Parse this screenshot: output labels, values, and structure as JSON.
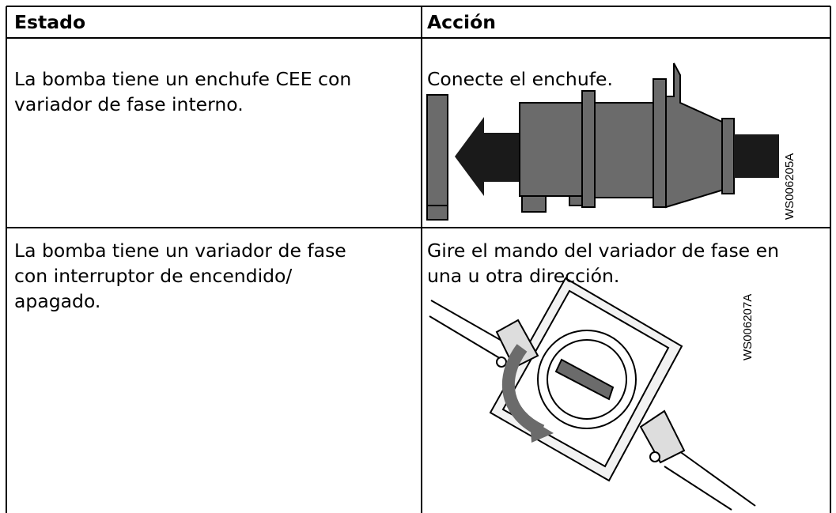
{
  "table": {
    "header": [
      "Estado",
      "Acción"
    ],
    "rows": [
      {
        "estado": [
          "La bomba tiene un enchufe CEE con",
          "variador de fase interno."
        ],
        "accion": [
          "Conecte el enchufe."
        ],
        "figure_code": "WS006205A"
      },
      {
        "estado": [
          "La bomba tiene un variador de fase",
          "con interruptor de encendido/",
          "apagado."
        ],
        "accion": [
          "Gire el mando del variador de fase en",
          "una u otra dirección."
        ],
        "figure_code": "WS006207A"
      }
    ]
  }
}
